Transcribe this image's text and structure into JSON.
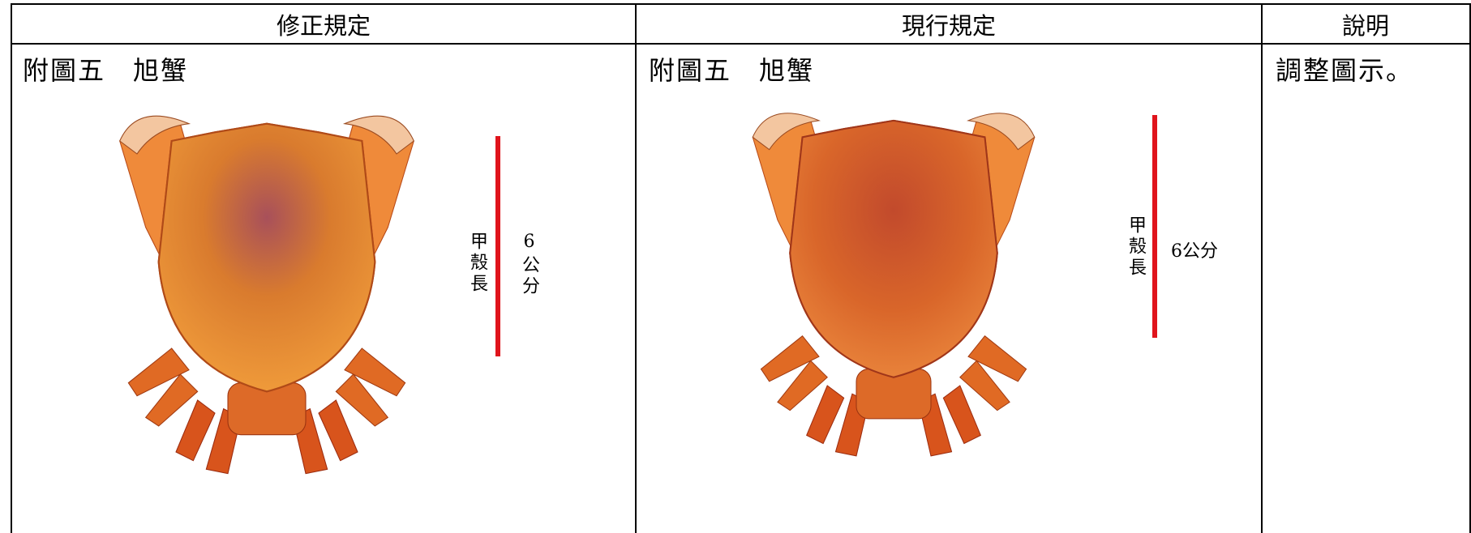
{
  "table": {
    "header": [
      "修正規定",
      "現行規定",
      "說明"
    ],
    "rows": [
      [
        {
          "caption": "附圖五　旭蟹",
          "length_label": "甲殼長",
          "size_label": "6公分"
        },
        {
          "caption": "附圖五　旭蟹",
          "length_label": "甲殼長",
          "size_label": "6公分"
        },
        {
          "text": "調整圖示。"
        }
      ]
    ]
  }
}
